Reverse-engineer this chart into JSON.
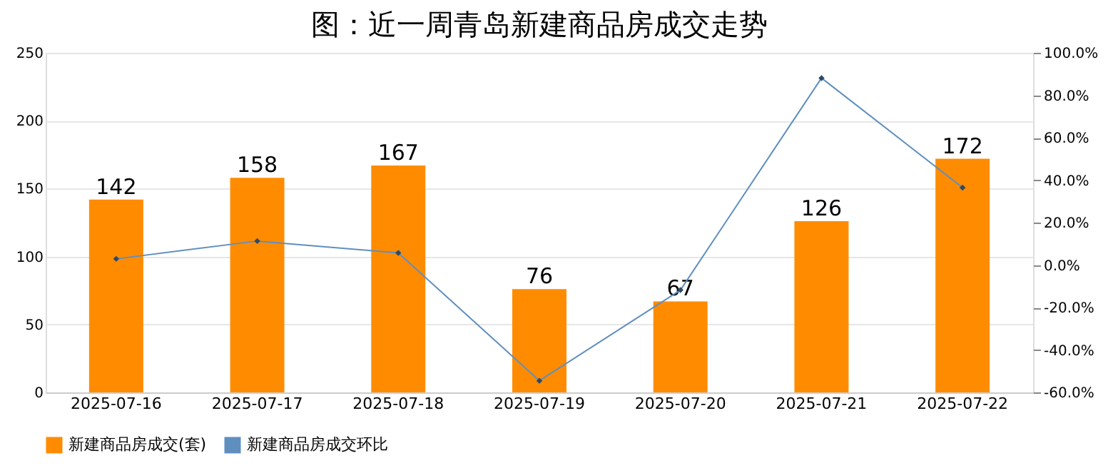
{
  "chart_data": {
    "type": "bar",
    "title": "图：近一周青岛新建商品房成交走势",
    "categories": [
      "2025-07-16",
      "2025-07-17",
      "2025-07-18",
      "2025-07-19",
      "2025-07-20",
      "2025-07-21",
      "2025-07-22"
    ],
    "series": [
      {
        "name": "新建商品房成交(套)",
        "color": "#ff8c00",
        "values": [
          142,
          158,
          167,
          76,
          67,
          126,
          172
        ],
        "value_labels": [
          "142",
          "158",
          "167",
          "76",
          "67",
          "126",
          "172"
        ]
      },
      {
        "name": "新建商品房成交环比",
        "color": "#5f8fbf",
        "type": "line",
        "axis": "y2",
        "marker": "diamond",
        "values": [
          2.9,
          11.3,
          5.7,
          -54.5,
          -11.8,
          88.1,
          36.5
        ]
      }
    ],
    "ylim": [
      0,
      250
    ],
    "yticks": [
      0,
      50,
      100,
      150,
      200,
      250
    ],
    "y2lim": [
      -60,
      100
    ],
    "y2ticks": [
      {
        "value": -60,
        "label": "-60.0%"
      },
      {
        "value": -40,
        "label": "-40.0%"
      },
      {
        "value": -20,
        "label": "-20.0%"
      },
      {
        "value": 0,
        "label": "0.0%"
      },
      {
        "value": 20,
        "label": "20.0%"
      },
      {
        "value": 40,
        "label": "40.0%"
      },
      {
        "value": 60,
        "label": "60.0%"
      },
      {
        "value": 80,
        "label": "80.0%"
      },
      {
        "value": 100,
        "label": "100.0%"
      }
    ],
    "grid": "y",
    "legend": "bottom"
  }
}
